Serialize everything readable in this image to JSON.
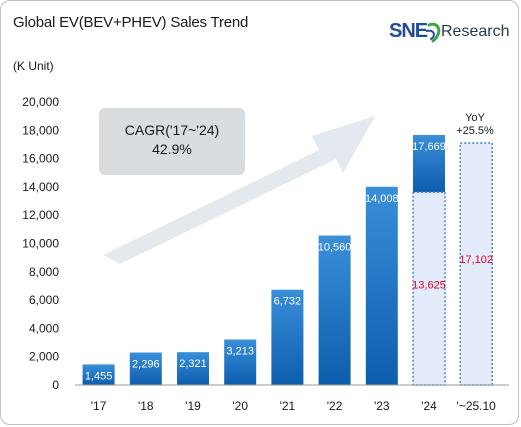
{
  "title": "Global EV(BEV+PHEV) Sales Trend",
  "unit": "(K Unit)",
  "logo_text": "SNE",
  "logo_text2": "Research",
  "cagr_box": {
    "line1": "CAGR('17~'24)",
    "line2": "42.9%"
  },
  "yoy_note": {
    "line1": "YoY",
    "line2": "+25.5%"
  },
  "colors": {
    "bar_top": "#3a8fd9",
    "bar_bottom": "#0d5dad",
    "partial_fill": "#e3ebfb",
    "partial_border": "#3f86d8",
    "partial_label": "#e0001b",
    "cagr_box": "#d9dde0",
    "arrow": "#e4e9ef"
  },
  "chart_data": {
    "type": "bar",
    "categories": [
      "'17",
      "'18",
      "'19",
      "'20",
      "'21",
      "'22",
      "'23",
      "'24",
      "'~25.10"
    ],
    "values": [
      1455,
      2296,
      2321,
      3213,
      6732,
      10560,
      14008,
      17669,
      17102
    ],
    "value_labels": [
      "1,455",
      "2,296",
      "2,321",
      "3,213",
      "6,732",
      "10,560",
      "14,008",
      "17,669",
      "17,102"
    ],
    "partial_values": {
      "'24": 13625
    },
    "partial_labels": {
      "'24": "13,625"
    },
    "ylim": [
      0,
      20000
    ],
    "yticks": [
      0,
      2000,
      4000,
      6000,
      8000,
      10000,
      12000,
      14000,
      16000,
      18000,
      20000
    ],
    "ytick_labels": [
      "0",
      "2,000",
      "4,000",
      "6,000",
      "8,000",
      "10,000",
      "12,000",
      "14,000",
      "16,000",
      "18,000",
      "20,000"
    ],
    "title": "Global EV(BEV+PHEV) Sales Trend",
    "ylabel": "(K Unit)",
    "grid": false,
    "legend": false
  }
}
